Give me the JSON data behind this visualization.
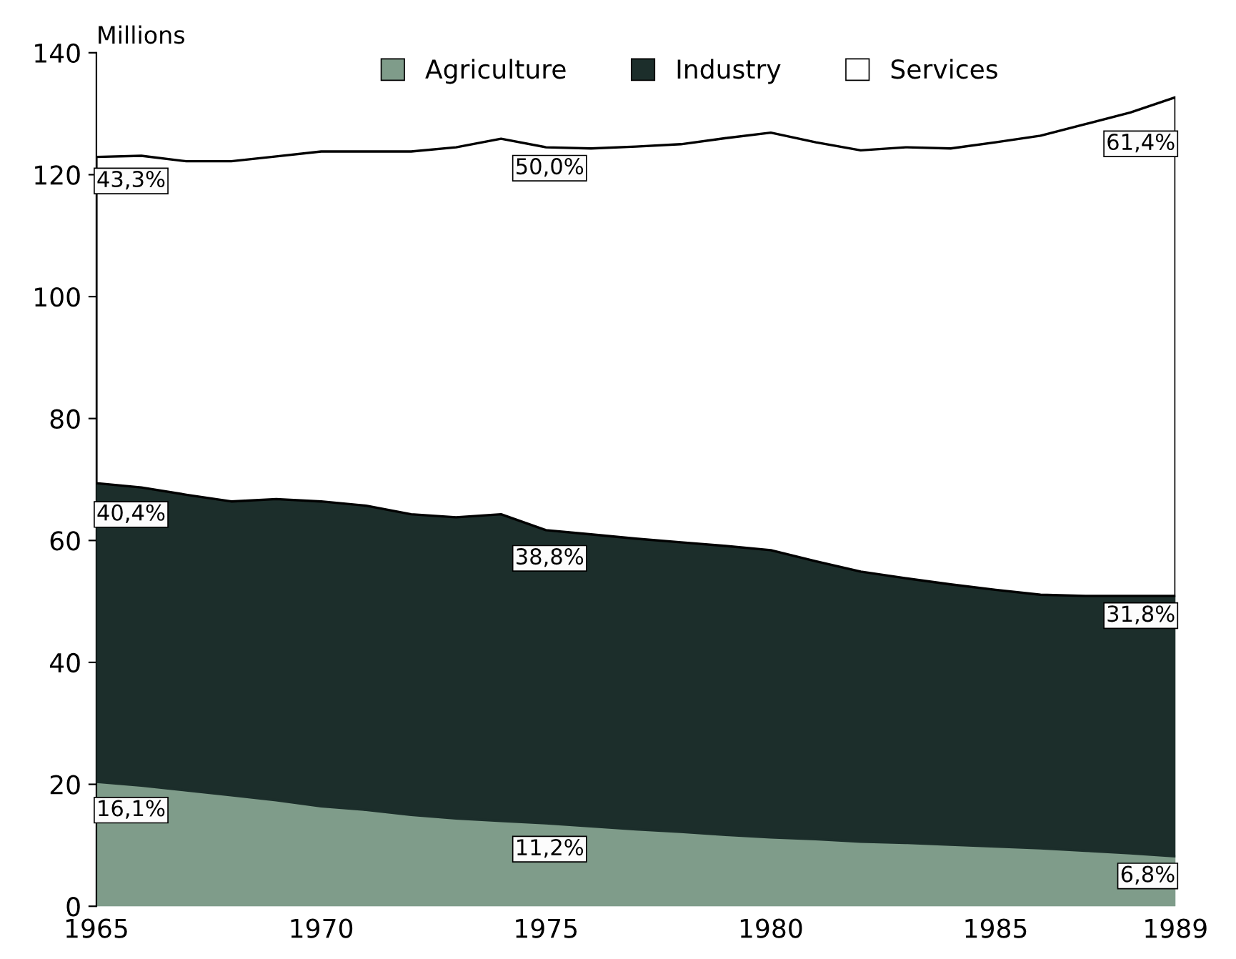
{
  "chart_data": {
    "type": "area",
    "stacked": true,
    "ylabel": "Millions",
    "x": [
      1965,
      1966,
      1967,
      1968,
      1969,
      1970,
      1971,
      1972,
      1973,
      1974,
      1975,
      1976,
      1977,
      1978,
      1979,
      1980,
      1981,
      1982,
      1983,
      1984,
      1985,
      1986,
      1987,
      1988,
      1989
    ],
    "series": [
      {
        "name": "Agriculture",
        "color": "#7f9c8a",
        "values": [
          20.4,
          19.8,
          19.0,
          18.2,
          17.4,
          16.4,
          15.8,
          15.0,
          14.4,
          14.0,
          13.6,
          13.1,
          12.6,
          12.2,
          11.7,
          11.3,
          11.0,
          10.6,
          10.4,
          10.1,
          9.8,
          9.5,
          9.1,
          8.7,
          8.2
        ]
      },
      {
        "name": "Industry",
        "color": "#1c2e2b",
        "values": [
          49.0,
          48.9,
          48.5,
          48.2,
          49.4,
          50.0,
          49.9,
          49.3,
          49.4,
          50.3,
          48.1,
          47.9,
          47.7,
          47.5,
          47.4,
          47.1,
          45.6,
          44.3,
          43.4,
          42.7,
          42.1,
          41.6,
          41.8,
          42.2,
          42.7
        ]
      },
      {
        "name": "Services",
        "color": "#ffffff",
        "values": [
          53.5,
          54.4,
          54.7,
          55.8,
          56.2,
          57.4,
          58.1,
          59.5,
          60.7,
          61.6,
          62.8,
          63.3,
          64.3,
          65.3,
          66.9,
          68.5,
          68.7,
          69.1,
          70.7,
          71.5,
          73.4,
          75.3,
          77.4,
          79.3,
          81.8
        ]
      }
    ],
    "xlim": [
      1965,
      1989
    ],
    "xticks": [
      1965,
      1970,
      1975,
      1980,
      1985,
      1989
    ],
    "ylim": [
      0,
      140
    ],
    "yticks": [
      0,
      20,
      40,
      60,
      80,
      100,
      120,
      140
    ],
    "grid": false,
    "legend": "top",
    "annotations": [
      "16,1%",
      "11,2%",
      "6,8%",
      "40,4%",
      "38,8%",
      "31,8%",
      "43,3%",
      "50,0%",
      "61,4%"
    ]
  }
}
